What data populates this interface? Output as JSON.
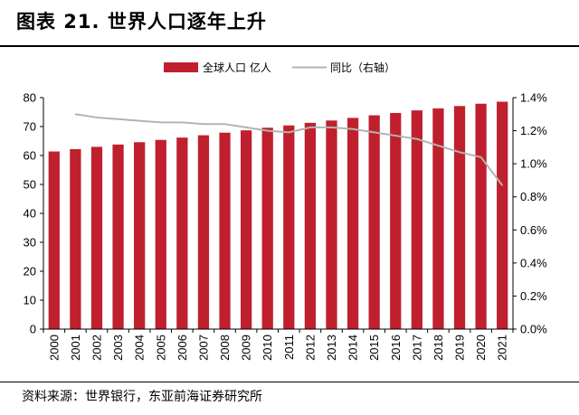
{
  "title": "图表 21. 世界人口逐年上升",
  "source": "资料来源：世界银行，东亚前海证券研究所",
  "colors": {
    "bar": "#c0202e",
    "line": "#b3b3b3",
    "axis": "#000000"
  },
  "chart_data": {
    "type": "bar",
    "categories": [
      "2000",
      "2001",
      "2002",
      "2003",
      "2004",
      "2005",
      "2006",
      "2007",
      "2008",
      "2009",
      "2010",
      "2011",
      "2012",
      "2013",
      "2014",
      "2015",
      "2016",
      "2017",
      "2018",
      "2019",
      "2020",
      "2021"
    ],
    "series": [
      {
        "name": "全球人口 亿人",
        "type": "bar",
        "axis": "left",
        "values": [
          61.4,
          62.2,
          63.0,
          63.8,
          64.6,
          65.4,
          66.2,
          67.0,
          67.9,
          68.7,
          69.6,
          70.4,
          71.3,
          72.1,
          73.0,
          73.9,
          74.7,
          75.6,
          76.3,
          77.1,
          77.9,
          78.6
        ]
      },
      {
        "name": "同比（右轴）",
        "type": "line",
        "axis": "right",
        "values": [
          null,
          1.3,
          1.28,
          1.27,
          1.26,
          1.25,
          1.25,
          1.24,
          1.24,
          1.22,
          1.2,
          1.19,
          1.22,
          1.22,
          1.21,
          1.19,
          1.17,
          1.15,
          1.11,
          1.07,
          1.04,
          0.87
        ]
      }
    ],
    "ylim_left": [
      0,
      80
    ],
    "yticks_left": [
      "0",
      "10",
      "20",
      "30",
      "40",
      "50",
      "60",
      "70",
      "80"
    ],
    "ylim_right": [
      0,
      1.4
    ],
    "yticks_right": [
      "0.0%",
      "0.2%",
      "0.4%",
      "0.6%",
      "0.8%",
      "1.0%",
      "1.2%",
      "1.4%"
    ],
    "legend_position": "top-center",
    "grid": false
  }
}
